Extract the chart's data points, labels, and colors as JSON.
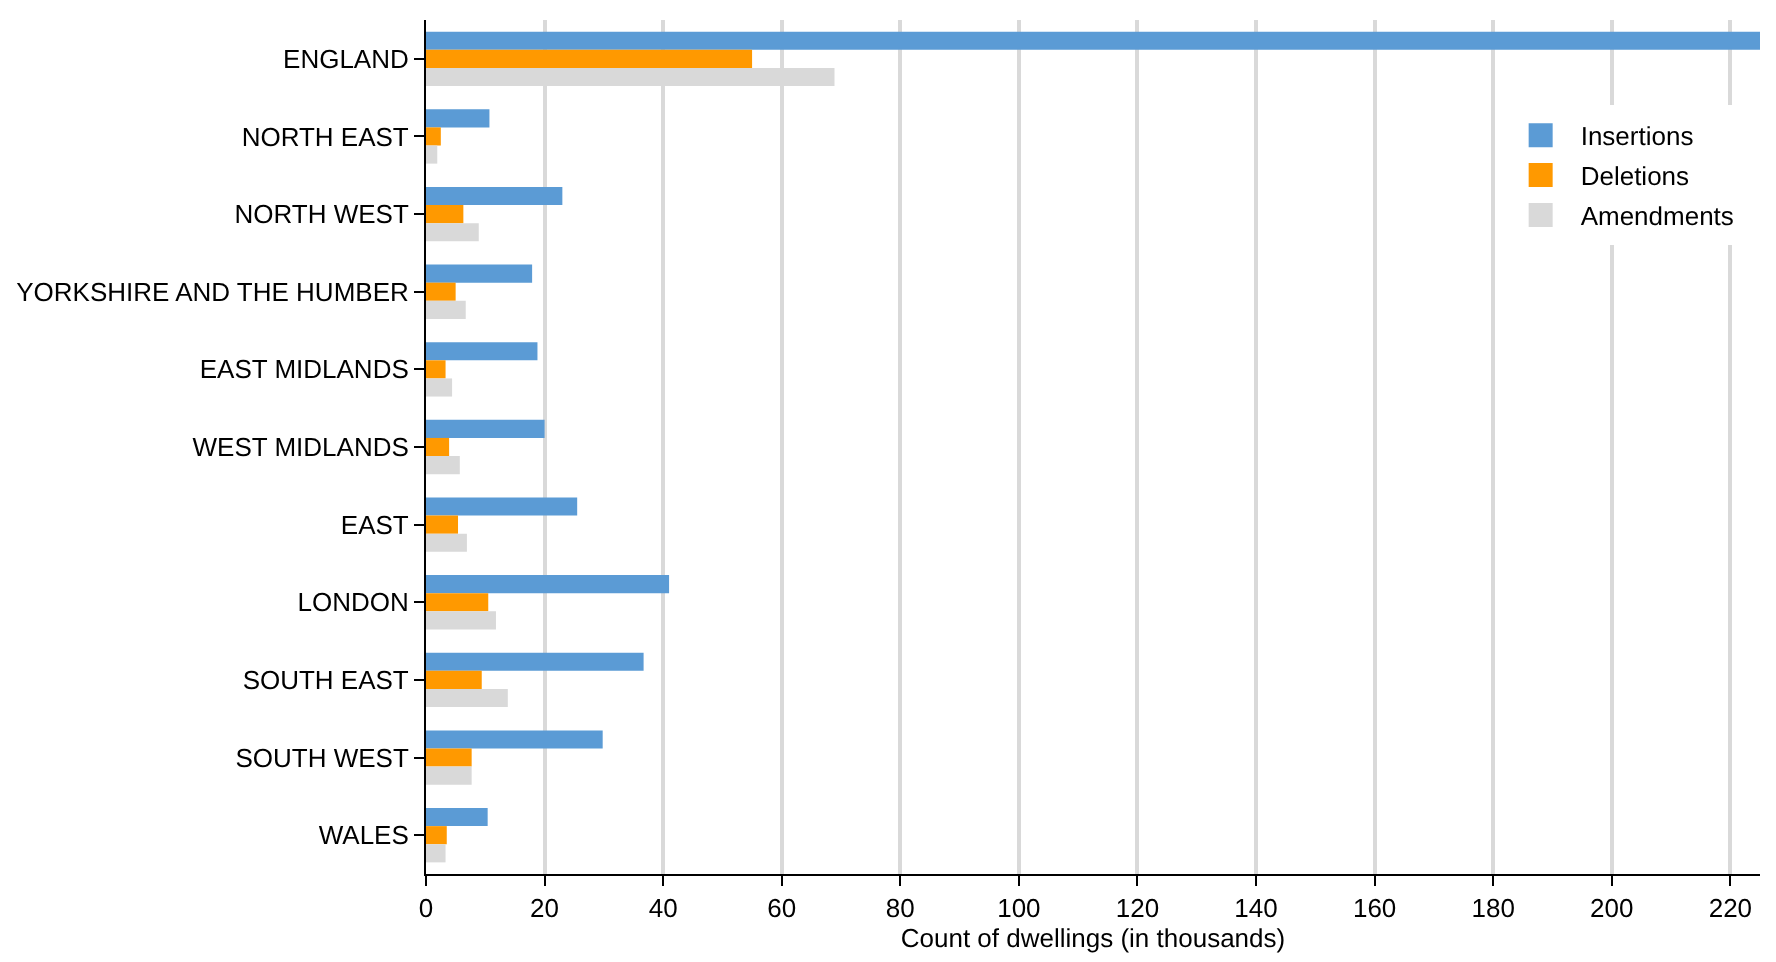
{
  "chart_data": {
    "type": "bar",
    "orientation": "horizontal",
    "xlabel": "Count of dwellings (in thousands)",
    "categories": [
      "ENGLAND",
      "NORTH EAST",
      "NORTH WEST",
      "YORKSHIRE AND THE HUMBER",
      "EAST MIDLANDS",
      "WEST MIDLANDS",
      "EAST",
      "LONDON",
      "SOUTH EAST",
      "SOUTH WEST",
      "WALES"
    ],
    "series": [
      {
        "name": "Insertions",
        "color": "#5b9bd5",
        "values": [
          225,
          10.7,
          23.0,
          17.9,
          18.8,
          20.0,
          25.5,
          41.0,
          36.7,
          29.8,
          10.4
        ]
      },
      {
        "name": "Deletions",
        "color": "#ff9900",
        "values": [
          55.0,
          2.5,
          6.3,
          5.0,
          3.3,
          3.9,
          5.4,
          10.5,
          9.4,
          7.7,
          3.5
        ]
      },
      {
        "name": "Amendments",
        "color": "#d9d9d9",
        "values": [
          68.9,
          1.9,
          8.9,
          6.7,
          4.4,
          5.7,
          6.9,
          11.8,
          13.8,
          7.7,
          3.3
        ]
      }
    ],
    "xlim": [
      0,
      225
    ],
    "xticks": [
      0,
      20,
      40,
      60,
      80,
      100,
      120,
      140,
      160,
      180,
      200,
      220
    ],
    "grid": "x",
    "legend": "top right"
  }
}
